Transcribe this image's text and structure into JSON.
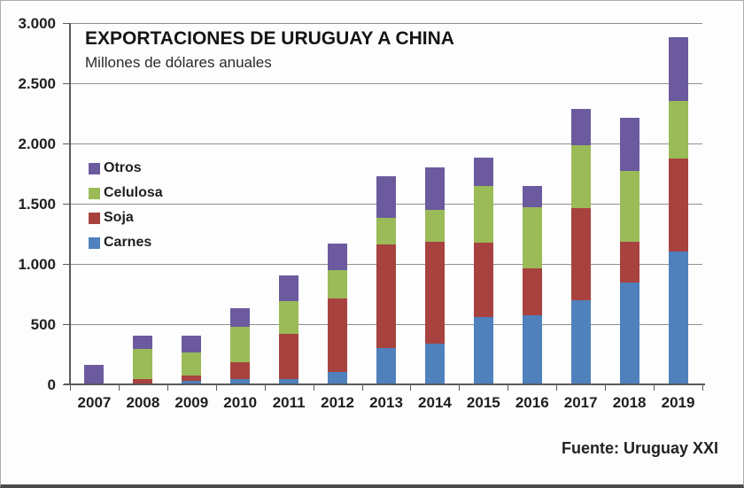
{
  "frame": {
    "source_note": "Fuente: Uruguay XXI"
  },
  "chart_data": {
    "type": "bar",
    "stacked": true,
    "title": "EXPORTACIONES DE URUGUAY A CHINA",
    "subtitle": "Millones de dólares anuales",
    "units": "Millions of USD per year",
    "categories": [
      "2007",
      "2008",
      "2009",
      "2010",
      "2011",
      "2012",
      "2013",
      "2014",
      "2015",
      "2016",
      "2017",
      "2018",
      "2019"
    ],
    "series": [
      {
        "name": "Carnes",
        "color": "#4f81bd",
        "values": [
          0,
          10,
          30,
          45,
          45,
          100,
          300,
          340,
          560,
          575,
          700,
          845,
          1100
        ]
      },
      {
        "name": "Soja",
        "color": "#a8423f",
        "values": [
          0,
          35,
          45,
          140,
          375,
          610,
          860,
          845,
          615,
          385,
          765,
          340,
          775
        ]
      },
      {
        "name": "Celulosa",
        "color": "#9bbb59",
        "values": [
          0,
          250,
          190,
          295,
          270,
          240,
          220,
          265,
          475,
          510,
          520,
          590,
          480
        ]
      },
      {
        "name": "Otros",
        "color": "#6b5b9e",
        "values": [
          160,
          110,
          140,
          155,
          215,
          220,
          345,
          350,
          235,
          175,
          300,
          440,
          525
        ]
      }
    ],
    "totals": [
      160,
      405,
      405,
      635,
      905,
      1170,
      1725,
      1800,
      1885,
      1645,
      2285,
      2215,
      2880
    ],
    "legend_order": [
      "Otros",
      "Celulosa",
      "Soja",
      "Carnes"
    ],
    "legend_position": "inside-left",
    "grid": true,
    "ylim": [
      0,
      3000
    ],
    "ytick_values": [
      0,
      500,
      1000,
      1500,
      2000,
      2500,
      3000
    ],
    "ytick_labels": [
      "0",
      "500",
      "1.000",
      "1.500",
      "2.000",
      "2.500",
      "3.000"
    ]
  }
}
